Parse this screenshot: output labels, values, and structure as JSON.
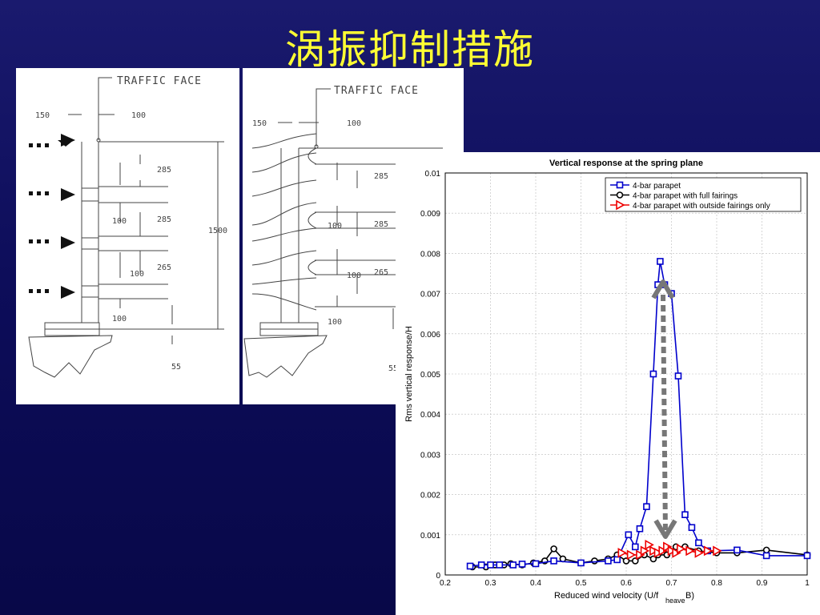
{
  "slide": {
    "title": "涡振抑制措施"
  },
  "drawing_left": {
    "label": "TRAFFIC FACE",
    "dims": {
      "top_left": "150",
      "top_right": "100",
      "gap1": "285",
      "gap2": "285",
      "gap3": "265",
      "bar1": "100",
      "bar2": "100",
      "bar3": "100",
      "total": "1500",
      "base": "55"
    }
  },
  "drawing_right": {
    "label": "TRAFFIC FACE",
    "dims": {
      "top_left": "150",
      "top_right": "100",
      "gap1": "285",
      "gap2": "285",
      "gap3": "265",
      "bar1": "100",
      "bar2": "100",
      "bar3": "100",
      "base": "55"
    }
  },
  "chart_data": {
    "type": "line",
    "title": "Vertical response at the spring plane",
    "xlabel_main": "Reduced wind velocity  (U/f",
    "xlabel_sub": "heave",
    "xlabel_end": "B)",
    "ylabel": "Rms vertical response/H",
    "xlim": [
      0.2,
      1.0
    ],
    "ylim": [
      0,
      0.01
    ],
    "xticks": [
      0.2,
      0.3,
      0.4,
      0.5,
      0.6,
      0.7,
      0.8,
      0.9,
      1
    ],
    "xtick_labels": [
      "0.2",
      "0.3",
      "0.4",
      "0.5",
      "0.6",
      "0.7",
      "0.8",
      "0.9",
      "1"
    ],
    "yticks": [
      0,
      0.001,
      0.002,
      0.003,
      0.004,
      0.005,
      0.006,
      0.007,
      0.008,
      0.009,
      0.01
    ],
    "ytick_labels": [
      "0",
      "0.001",
      "0.002",
      "0.003",
      "0.004",
      "0.005",
      "0.006",
      "0.007",
      "0.008",
      "0.009",
      "0.01"
    ],
    "grid": true,
    "legend_position": "top-right",
    "series": [
      {
        "name": "4-bar parapet",
        "color": "#0000cc",
        "marker": "square",
        "points": [
          [
            0.255,
            0.00022
          ],
          [
            0.28,
            0.00025
          ],
          [
            0.3,
            0.00025
          ],
          [
            0.32,
            0.00025
          ],
          [
            0.35,
            0.00025
          ],
          [
            0.37,
            0.00027
          ],
          [
            0.4,
            0.00028
          ],
          [
            0.44,
            0.00035
          ],
          [
            0.5,
            0.0003
          ],
          [
            0.56,
            0.00035
          ],
          [
            0.58,
            0.00038
          ],
          [
            0.605,
            0.001
          ],
          [
            0.62,
            0.0007
          ],
          [
            0.63,
            0.00115
          ],
          [
            0.645,
            0.0017
          ],
          [
            0.66,
            0.005
          ],
          [
            0.67,
            0.00722
          ],
          [
            0.675,
            0.0078
          ],
          [
            0.685,
            0.00722
          ],
          [
            0.7,
            0.007
          ],
          [
            0.715,
            0.00495
          ],
          [
            0.73,
            0.0015
          ],
          [
            0.745,
            0.00118
          ],
          [
            0.76,
            0.0008
          ],
          [
            0.78,
            0.0006
          ],
          [
            0.845,
            0.00062
          ],
          [
            0.91,
            0.00048
          ],
          [
            1.0,
            0.00048
          ]
        ]
      },
      {
        "name": "4-bar parapet with full fairings",
        "color": "#000000",
        "marker": "circle",
        "points": [
          [
            0.26,
            0.0002
          ],
          [
            0.29,
            0.0002
          ],
          [
            0.31,
            0.00025
          ],
          [
            0.33,
            0.00025
          ],
          [
            0.345,
            0.00028
          ],
          [
            0.37,
            0.00025
          ],
          [
            0.395,
            0.0003
          ],
          [
            0.42,
            0.00035
          ],
          [
            0.44,
            0.00065
          ],
          [
            0.46,
            0.0004
          ],
          [
            0.5,
            0.0003
          ],
          [
            0.53,
            0.00035
          ],
          [
            0.56,
            0.0004
          ],
          [
            0.58,
            0.0005
          ],
          [
            0.6,
            0.00035
          ],
          [
            0.62,
            0.00035
          ],
          [
            0.64,
            0.0005
          ],
          [
            0.66,
            0.0004
          ],
          [
            0.67,
            0.0005
          ],
          [
            0.69,
            0.0005
          ],
          [
            0.71,
            0.0007
          ],
          [
            0.73,
            0.0007
          ],
          [
            0.76,
            0.0006
          ],
          [
            0.8,
            0.00055
          ],
          [
            0.845,
            0.00055
          ],
          [
            0.91,
            0.00062
          ],
          [
            1.0,
            0.0005
          ]
        ]
      },
      {
        "name": "4-bar parapet with outside fairings only",
        "color": "#ee0000",
        "marker": "triangle-right",
        "points": [
          [
            0.59,
            0.00055
          ],
          [
            0.61,
            0.0005
          ],
          [
            0.63,
            0.0005
          ],
          [
            0.64,
            0.0006
          ],
          [
            0.65,
            0.00075
          ],
          [
            0.66,
            0.0006
          ],
          [
            0.67,
            0.00055
          ],
          [
            0.68,
            0.0006
          ],
          [
            0.69,
            0.0007
          ],
          [
            0.7,
            0.0006
          ],
          [
            0.71,
            0.00055
          ],
          [
            0.72,
            0.00065
          ],
          [
            0.74,
            0.0006
          ],
          [
            0.76,
            0.00055
          ],
          [
            0.78,
            0.0006
          ],
          [
            0.8,
            0.0006
          ]
        ]
      }
    ]
  }
}
